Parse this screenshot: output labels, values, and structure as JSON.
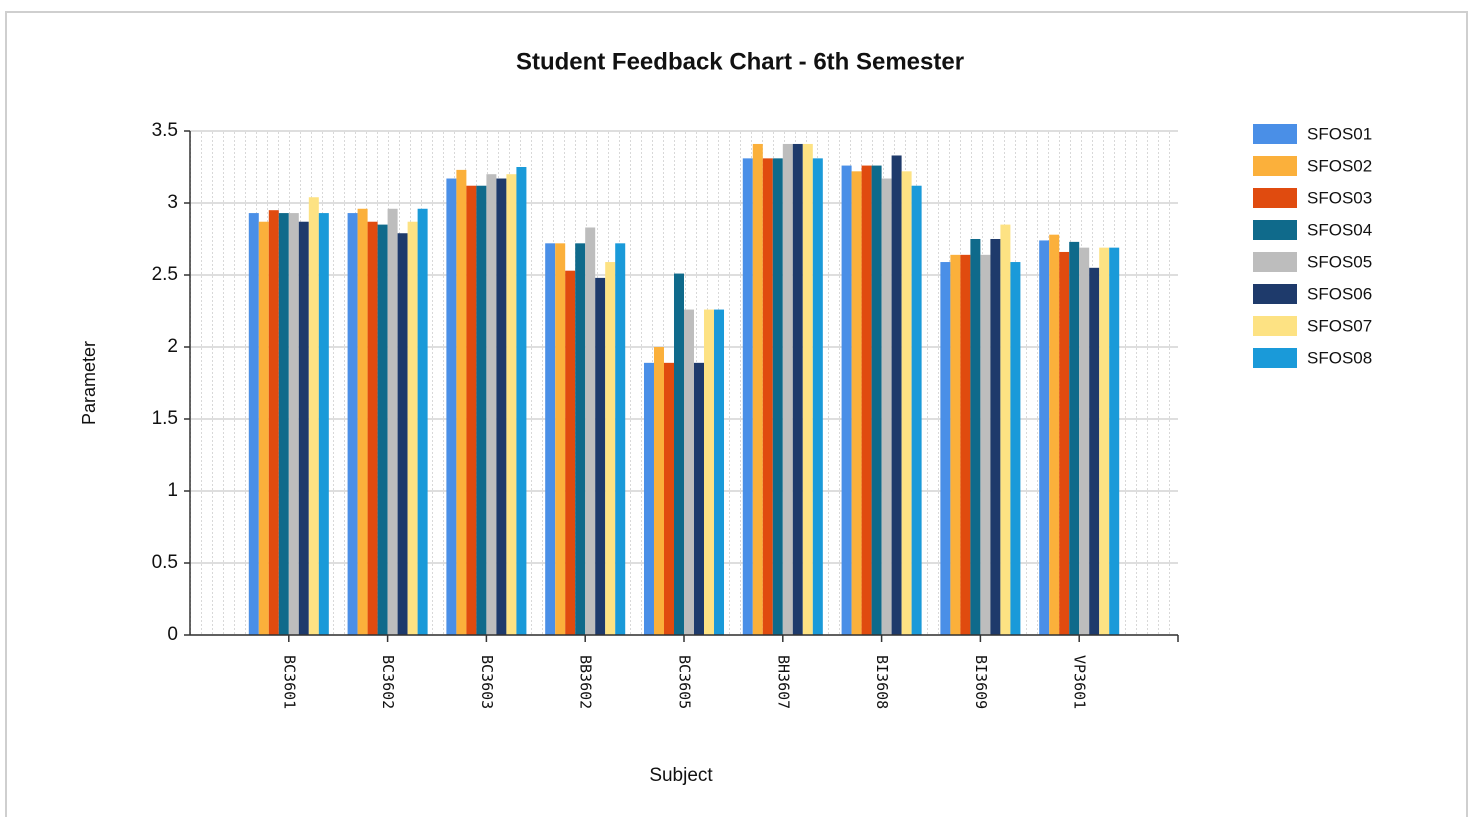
{
  "chart_data": {
    "type": "bar",
    "title": "Student Feedback Chart - 6th Semester",
    "x_label": "Subject",
    "y_label": "Parameter",
    "categories": [
      "BC3601",
      "BC3602",
      "BC3603",
      "BB3602",
      "BC3605",
      "BH3607",
      "BI3608",
      "BI3609",
      "VP3601"
    ],
    "series": [
      {
        "name": "SFOS01",
        "color": "#4a8fe7",
        "values": [
          2.93,
          2.93,
          3.17,
          2.72,
          1.89,
          3.31,
          3.26,
          2.59,
          2.74
        ]
      },
      {
        "name": "SFOS02",
        "color": "#fbb03b",
        "values": [
          2.87,
          2.96,
          3.23,
          2.72,
          2.0,
          3.41,
          3.22,
          2.64,
          2.78
        ]
      },
      {
        "name": "SFOS03",
        "color": "#e04b0f",
        "values": [
          2.95,
          2.87,
          3.12,
          2.53,
          1.89,
          3.31,
          3.26,
          2.64,
          2.66
        ]
      },
      {
        "name": "SFOS04",
        "color": "#0f6a8b",
        "values": [
          2.93,
          2.85,
          3.12,
          2.72,
          2.51,
          3.31,
          3.26,
          2.75,
          2.73
        ]
      },
      {
        "name": "SFOS05",
        "color": "#bdbdbd",
        "values": [
          2.93,
          2.96,
          3.2,
          2.83,
          2.26,
          3.41,
          3.17,
          2.64,
          2.69
        ]
      },
      {
        "name": "SFOS06",
        "color": "#1e3a6b",
        "values": [
          2.87,
          2.79,
          3.17,
          2.48,
          1.89,
          3.41,
          3.33,
          2.75,
          2.55
        ]
      },
      {
        "name": "SFOS07",
        "color": "#fde283",
        "values": [
          3.04,
          2.87,
          3.2,
          2.59,
          2.26,
          3.41,
          3.22,
          2.85,
          2.69
        ]
      },
      {
        "name": "SFOS08",
        "color": "#1a9ad9",
        "values": [
          2.93,
          2.96,
          3.25,
          2.72,
          2.26,
          3.31,
          3.12,
          2.59,
          2.69
        ]
      }
    ],
    "ylim": [
      0,
      3.5
    ],
    "yticks": [
      0,
      0.5,
      1,
      1.5,
      2,
      2.5,
      3,
      3.5
    ],
    "grid": true,
    "legend": "right"
  }
}
